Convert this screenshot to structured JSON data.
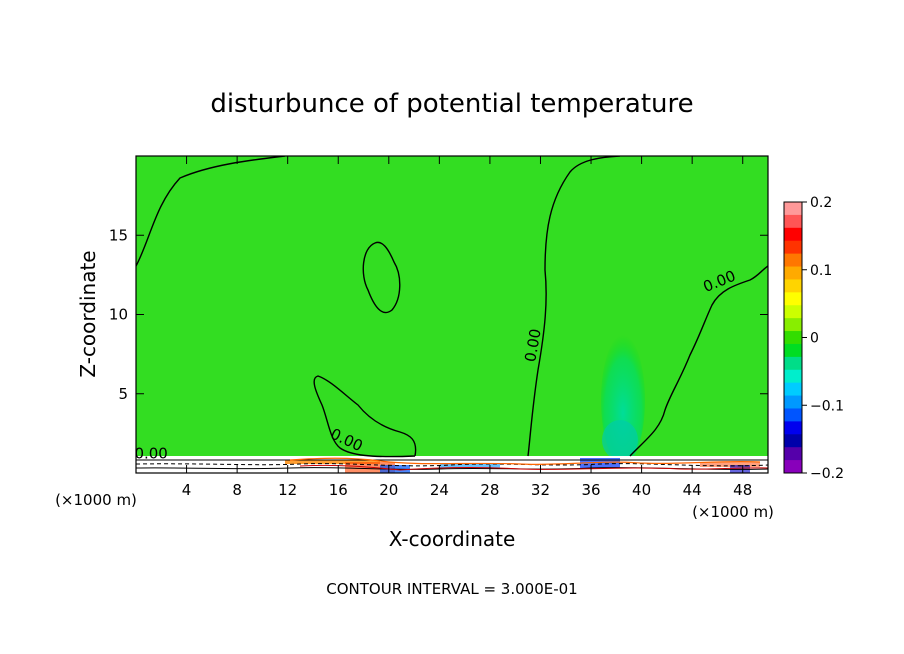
{
  "chart_data": {
    "type": "heatmap",
    "title": "disturbunce of potential temperature",
    "xlabel": "X-coordinate",
    "ylabel": "Z-coordinate",
    "x_unit_left": "(×1000 m)",
    "x_unit_right": "(×1000 m)",
    "footer": "CONTOUR INTERVAL = 3.000E-01",
    "xlim": [
      0,
      50
    ],
    "ylim": [
      0,
      20
    ],
    "x_ticks": [
      4,
      8,
      12,
      16,
      20,
      24,
      28,
      32,
      36,
      40,
      44,
      48
    ],
    "y_ticks": [
      5,
      10,
      15
    ],
    "background_value": 0,
    "colorbar": {
      "range": [
        -0.2,
        0.2
      ],
      "tick_labels": [
        "0.2",
        "0.1",
        "0",
        "−0.1",
        "−0.2"
      ],
      "tick_values": [
        0.2,
        0.1,
        0,
        -0.1,
        -0.2
      ],
      "colors": [
        "#ff9999",
        "#ff5555",
        "#ff0000",
        "#ff3300",
        "#ff7700",
        "#ffaa00",
        "#ffd400",
        "#ffff00",
        "#ccff00",
        "#88ee00",
        "#33dd00",
        "#00dd22",
        "#00dd88",
        "#00eecc",
        "#00ccff",
        "#0099ff",
        "#0055ff",
        "#0000ee",
        "#0000aa",
        "#5500aa",
        "#8800bb"
      ]
    },
    "contour_labels": [
      {
        "text": "0.00",
        "x": 1.2,
        "z": 0.9
      },
      {
        "text": "0.00",
        "x": 16.5,
        "z": 1.8
      },
      {
        "text": "0.00",
        "x": 31.8,
        "z": 8.0
      },
      {
        "text": "0.00",
        "x": 46.3,
        "z": 11.8
      }
    ],
    "anomaly_region": {
      "x": [
        35.5,
        40.0
      ],
      "z": [
        0.0,
        8.5
      ],
      "value": -0.04
    },
    "surface_layer_z": [
      0,
      1
    ]
  }
}
